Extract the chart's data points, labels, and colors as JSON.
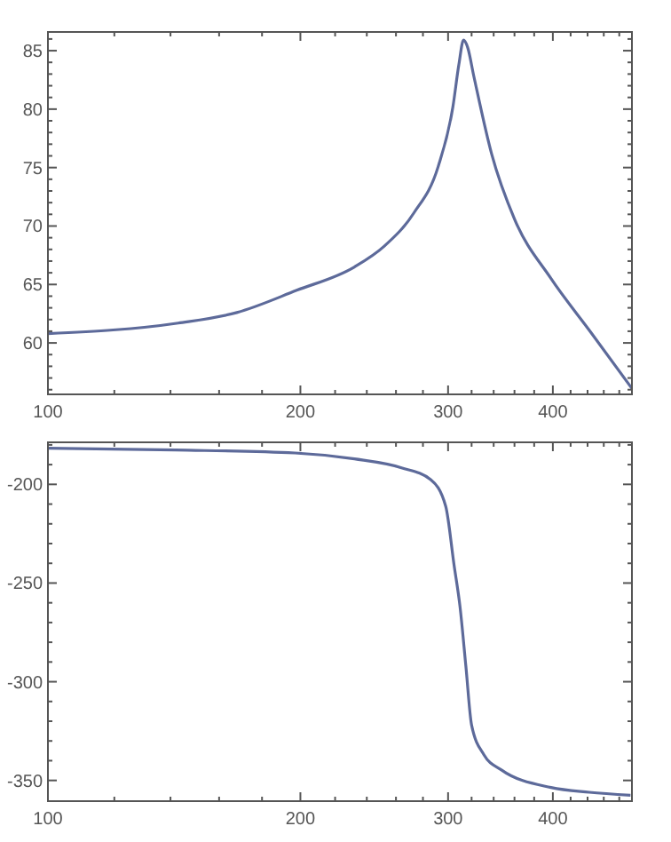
{
  "chart_data": [
    {
      "type": "line",
      "log": "x",
      "grid": false,
      "xlim": [
        100,
        497
      ],
      "ylim": [
        55.6,
        86.6
      ],
      "xticks": [
        100,
        {
          "value": 120,
          "label": null
        },
        {
          "value": 140,
          "label": null
        },
        {
          "value": 160,
          "label": null
        },
        {
          "value": 180,
          "label": null
        },
        200,
        {
          "value": 220,
          "label": null
        },
        {
          "value": 240,
          "label": null
        },
        {
          "value": 260,
          "label": null
        },
        {
          "value": 280,
          "label": null
        },
        300,
        {
          "value": 320,
          "label": null
        },
        {
          "value": 340,
          "label": null
        },
        {
          "value": 360,
          "label": null
        },
        {
          "value": 380,
          "label": null
        },
        400,
        {
          "value": 420,
          "label": null
        },
        {
          "value": 440,
          "label": null
        },
        {
          "value": 460,
          "label": null
        },
        {
          "value": 480,
          "label": null
        }
      ],
      "yticks": [
        {
          "value": 56,
          "label": null
        },
        {
          "value": 57,
          "label": null
        },
        {
          "value": 58,
          "label": null
        },
        {
          "value": 59,
          "label": null
        },
        60,
        {
          "value": 61,
          "label": null
        },
        {
          "value": 62,
          "label": null
        },
        {
          "value": 63,
          "label": null
        },
        {
          "value": 64,
          "label": null
        },
        65,
        {
          "value": 66,
          "label": null
        },
        {
          "value": 67,
          "label": null
        },
        {
          "value": 68,
          "label": null
        },
        {
          "value": 69,
          "label": null
        },
        70,
        {
          "value": 71,
          "label": null
        },
        {
          "value": 72,
          "label": null
        },
        {
          "value": 73,
          "label": null
        },
        {
          "value": 74,
          "label": null
        },
        75,
        {
          "value": 76,
          "label": null
        },
        {
          "value": 77,
          "label": null
        },
        {
          "value": 78,
          "label": null
        },
        {
          "value": 79,
          "label": null
        },
        80,
        {
          "value": 81,
          "label": null
        },
        {
          "value": 82,
          "label": null
        },
        {
          "value": 83,
          "label": null
        },
        {
          "value": 84,
          "label": null
        },
        85,
        {
          "value": 86,
          "label": null
        }
      ],
      "series": [
        {
          "color": "#5d6a9a",
          "x": [
            100,
            143,
            168,
            198,
            232,
            252,
            273,
            292,
            304,
            309,
            313,
            316.5,
            322,
            338,
            360,
            398,
            444,
            497
          ],
          "values": [
            60.8,
            61.7,
            62.6,
            64.5,
            66.5,
            68.3,
            71.1,
            75.1,
            80.2,
            83.8,
            85.9,
            85.3,
            82.8,
            76.2,
            70.6,
            65.5,
            60.9,
            56.1
          ]
        }
      ]
    },
    {
      "type": "line",
      "log": "x",
      "grid": false,
      "xlim": [
        100,
        497
      ],
      "ylim": [
        -360.5,
        -178.7
      ],
      "xticks": [
        100,
        {
          "value": 120,
          "label": null
        },
        {
          "value": 140,
          "label": null
        },
        {
          "value": 160,
          "label": null
        },
        {
          "value": 180,
          "label": null
        },
        200,
        {
          "value": 220,
          "label": null
        },
        {
          "value": 240,
          "label": null
        },
        {
          "value": 260,
          "label": null
        },
        {
          "value": 280,
          "label": null
        },
        300,
        {
          "value": 320,
          "label": null
        },
        {
          "value": 340,
          "label": null
        },
        {
          "value": 360,
          "label": null
        },
        {
          "value": 380,
          "label": null
        },
        400,
        {
          "value": 420,
          "label": null
        },
        {
          "value": 440,
          "label": null
        },
        {
          "value": 460,
          "label": null
        },
        {
          "value": 480,
          "label": null
        }
      ],
      "yticks": [
        -350,
        {
          "value": -340,
          "label": null
        },
        {
          "value": -330,
          "label": null
        },
        {
          "value": -320,
          "label": null
        },
        {
          "value": -310,
          "label": null
        },
        -300,
        {
          "value": -290,
          "label": null
        },
        {
          "value": -280,
          "label": null
        },
        {
          "value": -270,
          "label": null
        },
        {
          "value": -260,
          "label": null
        },
        -250,
        {
          "value": -240,
          "label": null
        },
        {
          "value": -230,
          "label": null
        },
        {
          "value": -220,
          "label": null
        },
        {
          "value": -210,
          "label": null
        },
        -200,
        {
          "value": -190,
          "label": null
        },
        {
          "value": -180,
          "label": null
        }
      ],
      "series": [
        {
          "color": "#5d6a9a",
          "x": [
            100,
            142,
            197,
            232,
            264,
            286,
            298,
            305,
            310,
            315,
            320,
            331,
            347,
            398,
            442,
            495
          ],
          "values": [
            -181.7,
            -182.6,
            -184.1,
            -187.1,
            -191.6,
            -197.6,
            -211,
            -241,
            -262,
            -292,
            -322,
            -337,
            -344.6,
            -353.6,
            -356,
            -357.5
          ]
        }
      ]
    }
  ]
}
